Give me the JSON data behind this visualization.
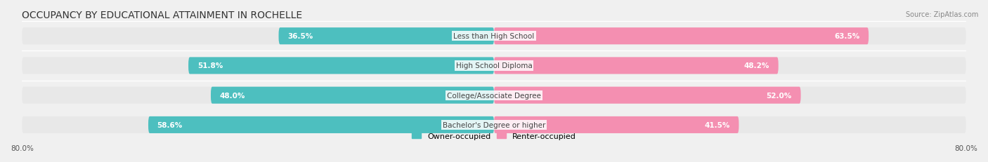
{
  "title": "OCCUPANCY BY EDUCATIONAL ATTAINMENT IN ROCHELLE",
  "source": "Source: ZipAtlas.com",
  "categories": [
    "Less than High School",
    "High School Diploma",
    "College/Associate Degree",
    "Bachelor's Degree or higher"
  ],
  "owner_values": [
    36.5,
    51.8,
    48.0,
    58.6
  ],
  "renter_values": [
    63.5,
    48.2,
    52.0,
    41.5
  ],
  "owner_color": "#4dbfbf",
  "renter_color": "#f48fb1",
  "bar_height": 0.55,
  "xlim_left": -80.0,
  "xlim_right": 80.0,
  "background_color": "#f0f0f0",
  "bar_bg_color": "#e8e8e8",
  "title_fontsize": 10,
  "label_fontsize": 7.5,
  "tick_fontsize": 7.5,
  "legend_fontsize": 8
}
